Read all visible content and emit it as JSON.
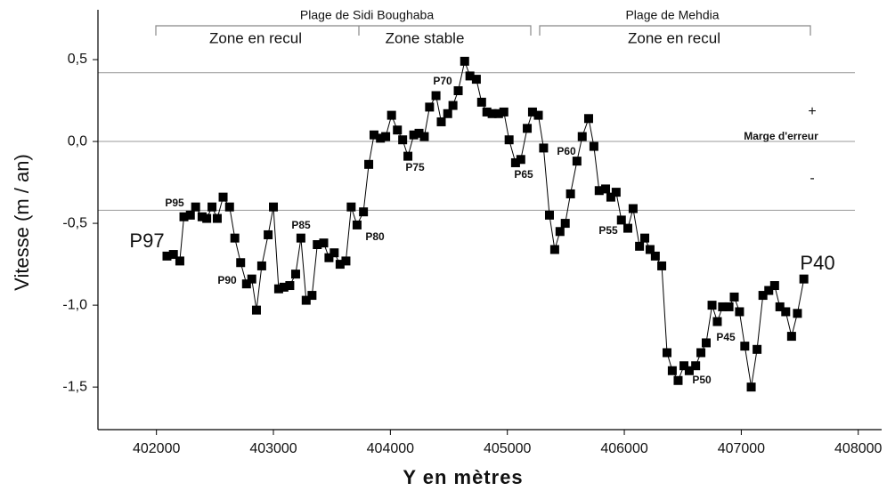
{
  "chart_data": {
    "type": "line",
    "xlabel": "Y en mètres",
    "ylabel": "Vitesse (m / an)",
    "regions": [
      "Plage de Sidi Boughaba",
      "Plage de Mehdia"
    ],
    "zones": [
      "Zone en recul",
      "Zone stable",
      "Zone en recul"
    ],
    "margin_labels": [
      "+",
      "Marge d'erreur",
      "-"
    ],
    "annotations": [
      "P97",
      "P95",
      "P90",
      "P85",
      "P80",
      "P75",
      "P70",
      "P65",
      "P60",
      "P55",
      "P50",
      "P45",
      "P40"
    ],
    "reference_lines": [
      0.42,
      0,
      -0.42
    ],
    "xlim": [
      401500,
      408200
    ],
    "ylim": [
      -1.76,
      0.75
    ],
    "xticks": [
      402000,
      403000,
      404000,
      405000,
      406000,
      407000,
      408000
    ],
    "yticks": [
      {
        "value": 0.5,
        "label": "0,5"
      },
      {
        "value": 0,
        "label": "0,0"
      },
      {
        "value": -0.5,
        "label": "-0,5"
      },
      {
        "value": -1,
        "label": "-1,0"
      },
      {
        "value": -1.5,
        "label": "-1,5"
      }
    ],
    "x": [
      402090,
      402145,
      402200,
      402235,
      402290,
      402335,
      402390,
      402430,
      402475,
      402520,
      402570,
      402625,
      402670,
      402720,
      402770,
      402815,
      402855,
      402900,
      402955,
      403000,
      403045,
      403090,
      403140,
      403190,
      403235,
      403280,
      403330,
      403375,
      403430,
      403475,
      403520,
      403570,
      403620,
      403665,
      403715,
      403770,
      403815,
      403860,
      403915,
      403960,
      404010,
      404060,
      404105,
      404150,
      404200,
      404245,
      404290,
      404335,
      404390,
      404435,
      404490,
      404535,
      404580,
      404635,
      404680,
      404735,
      404780,
      404825,
      404870,
      404925,
      404970,
      405015,
      405070,
      405115,
      405170,
      405215,
      405265,
      405310,
      405360,
      405405,
      405450,
      405495,
      405540,
      405595,
      405640,
      405695,
      405740,
      405785,
      405840,
      405885,
      405930,
      405975,
      406030,
      406075,
      406130,
      406175,
      406220,
      406265,
      406320,
      406365,
      406410,
      406460,
      406510,
      406555,
      406610,
      406655,
      406700,
      406750,
      406795,
      406840,
      406895,
      406940,
      406985,
      407030,
      407085,
      407135,
      407185,
      407235,
      407285,
      407330,
      407380,
      407430,
      407480,
      407535
    ],
    "series": [
      {
        "color": "#000000",
        "values": [
          -0.7,
          -0.69,
          -0.73,
          -0.46,
          -0.45,
          -0.4,
          -0.46,
          -0.47,
          -0.4,
          -0.47,
          -0.34,
          -0.4,
          -0.59,
          -0.74,
          -0.87,
          -0.84,
          -1.03,
          -0.76,
          -0.57,
          -0.4,
          -0.9,
          -0.89,
          -0.88,
          -0.81,
          -0.59,
          -0.97,
          -0.94,
          -0.63,
          -0.62,
          -0.71,
          -0.68,
          -0.75,
          -0.73,
          -0.4,
          -0.51,
          -0.43,
          -0.14,
          0.04,
          0.02,
          0.03,
          0.16,
          0.07,
          0.01,
          -0.09,
          0.04,
          0.05,
          0.03,
          0.21,
          0.28,
          0.12,
          0.17,
          0.22,
          0.31,
          0.49,
          0.4,
          0.38,
          0.24,
          0.18,
          0.17,
          0.17,
          0.18,
          0.01,
          -0.13,
          -0.11,
          0.08,
          0.18,
          0.16,
          -0.04,
          -0.45,
          -0.66,
          -0.55,
          -0.5,
          -0.32,
          -0.12,
          0.03,
          0.14,
          -0.03,
          -0.3,
          -0.29,
          -0.34,
          -0.31,
          -0.48,
          -0.53,
          -0.41,
          -0.64,
          -0.59,
          -0.66,
          -0.7,
          -0.76,
          -1.29,
          -1.4,
          -1.46,
          -1.37,
          -1.4,
          -1.37,
          -1.29,
          -1.23,
          -1.0,
          -1.1,
          -1.01,
          -1.01,
          -0.95,
          -1.04,
          -1.25,
          -1.5,
          -1.27,
          -0.94,
          -0.91,
          -0.88,
          -1.01,
          -1.04,
          -1.19,
          -1.05,
          -0.84
        ]
      }
    ]
  }
}
